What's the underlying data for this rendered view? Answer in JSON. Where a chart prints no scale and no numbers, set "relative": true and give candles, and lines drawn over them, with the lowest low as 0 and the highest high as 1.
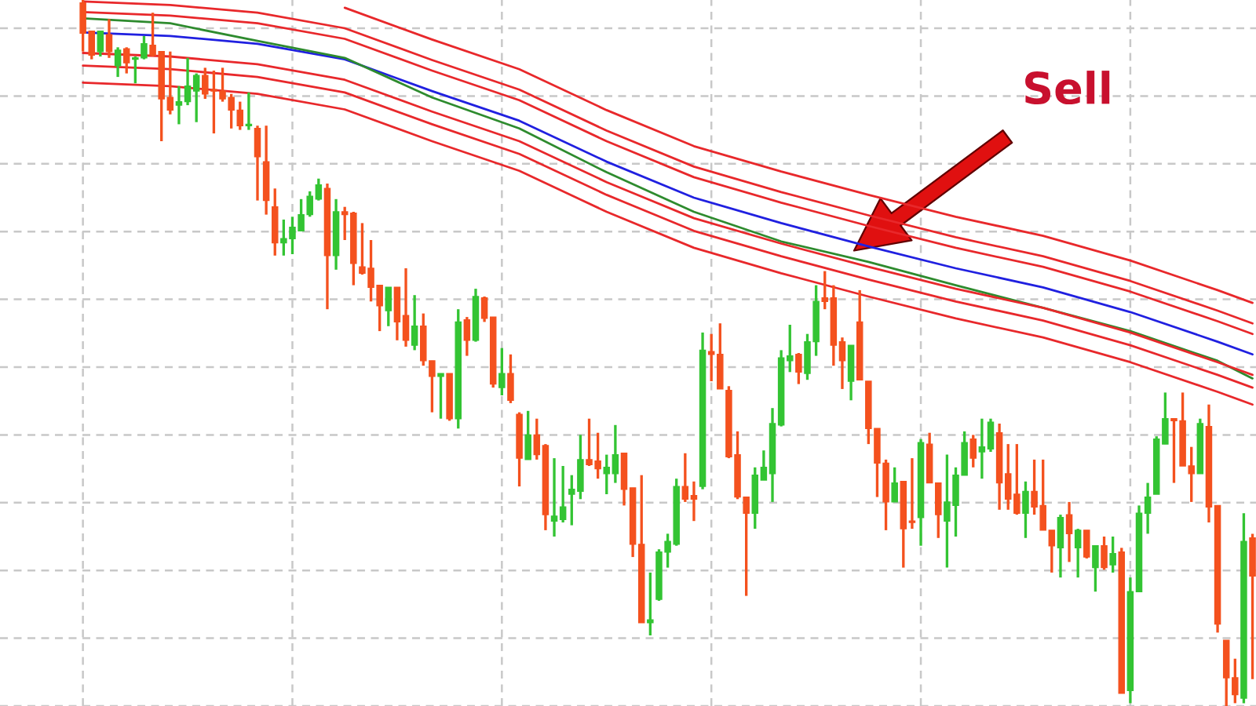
{
  "chart_data": {
    "type": "candlestick",
    "relative": true,
    "grid": true,
    "annotations": [
      "Sell"
    ],
    "categories": [
      null,
      null,
      null,
      null,
      null,
      null,
      null,
      null,
      null,
      null,
      null,
      null,
      null,
      null,
      null,
      null,
      null,
      null,
      null,
      null,
      null,
      null,
      null,
      null,
      null,
      null,
      null,
      null,
      null,
      null,
      null,
      null,
      null,
      null,
      null,
      null,
      null,
      null,
      null,
      null,
      null,
      null,
      null,
      null,
      null,
      null,
      null,
      null,
      null,
      null,
      null,
      null,
      null,
      null,
      null,
      null,
      null,
      null,
      null,
      null,
      null,
      null,
      null,
      null,
      null,
      null,
      null,
      null,
      null,
      null,
      null,
      null,
      null,
      null,
      null,
      null,
      null,
      null,
      null,
      null,
      null,
      null,
      null,
      null,
      null,
      null,
      null,
      null,
      null,
      null,
      null,
      null,
      null,
      null,
      null,
      null,
      null,
      null,
      null,
      null,
      null,
      null,
      null,
      null,
      null,
      null,
      null,
      null,
      null,
      null,
      null,
      null,
      null,
      null,
      null,
      null,
      null,
      null,
      null,
      null,
      null,
      null,
      null,
      null,
      null,
      null,
      null,
      null,
      null,
      null,
      null,
      null,
      null,
      null,
      null
    ],
    "ohlc": [
      [
        0.996,
        1,
        0.927,
        0.953
      ],
      [
        0.956,
        0.956,
        0.916,
        0.922
      ],
      [
        0.927,
        0.956,
        0.92,
        0.956
      ],
      [
        0.951,
        0.973,
        0.918,
        0.927
      ],
      [
        0.907,
        0.933,
        0.891,
        0.929
      ],
      [
        0.931,
        0.933,
        0.896,
        0.911
      ],
      [
        0.916,
        0.92,
        0.882,
        0.918
      ],
      [
        0.918,
        0.949,
        0.916,
        0.938
      ],
      [
        0.936,
        0.982,
        0.92,
        0.922
      ],
      [
        0.927,
        0.927,
        0.8,
        0.86
      ],
      [
        0.862,
        0.927,
        0.838,
        0.844
      ],
      [
        0.851,
        0.878,
        0.824,
        0.856
      ],
      [
        0.856,
        0.918,
        0.851,
        0.878
      ],
      [
        0.871,
        0.896,
        0.827,
        0.893
      ],
      [
        0.893,
        0.904,
        0.86,
        0.867
      ],
      [
        0.873,
        0.9,
        0.811,
        0.871
      ],
      [
        0.871,
        0.904,
        0.856,
        0.86
      ],
      [
        0.862,
        0.867,
        0.818,
        0.844
      ],
      [
        0.844,
        0.856,
        0.816,
        0.822
      ],
      [
        0.822,
        0.869,
        0.816,
        0.824
      ],
      [
        0.818,
        0.822,
        0.716,
        0.778
      ],
      [
        0.771,
        0.822,
        0.696,
        0.716
      ],
      [
        0.707,
        0.733,
        0.638,
        0.656
      ],
      [
        0.656,
        0.689,
        0.638,
        0.662
      ],
      [
        0.662,
        0.693,
        0.64,
        0.678
      ],
      [
        0.673,
        0.718,
        0.673,
        0.696
      ],
      [
        0.696,
        0.729,
        0.693,
        0.722
      ],
      [
        0.718,
        0.747,
        0.716,
        0.738
      ],
      [
        0.733,
        0.74,
        0.562,
        0.638
      ],
      [
        0.638,
        0.718,
        0.618,
        0.7
      ],
      [
        0.7,
        0.707,
        0.66,
        0.696
      ],
      [
        0.698,
        0.7,
        0.596,
        0.627
      ],
      [
        0.622,
        0.684,
        0.611,
        0.613
      ],
      [
        0.62,
        0.66,
        0.573,
        0.593
      ],
      [
        0.596,
        0.596,
        0.531,
        0.567
      ],
      [
        0.56,
        0.593,
        0.538,
        0.593
      ],
      [
        0.593,
        0.593,
        0.518,
        0.544
      ],
      [
        0.553,
        0.62,
        0.509,
        0.518
      ],
      [
        0.511,
        0.582,
        0.504,
        0.538
      ],
      [
        0.538,
        0.556,
        0.482,
        0.489
      ],
      [
        0.489,
        0.489,
        0.416,
        0.467
      ],
      [
        0.467,
        0.471,
        0.407,
        0.471
      ],
      [
        0.471,
        0.471,
        0.404,
        0.407
      ],
      [
        0.407,
        0.562,
        0.393,
        0.544
      ],
      [
        0.547,
        0.551,
        0.496,
        0.518
      ],
      [
        0.518,
        0.591,
        0.516,
        0.58
      ],
      [
        0.578,
        0.58,
        0.544,
        0.549
      ],
      [
        0.551,
        0.551,
        0.451,
        0.456
      ],
      [
        0.451,
        0.507,
        0.44,
        0.471
      ],
      [
        0.471,
        0.498,
        0.429,
        0.433
      ],
      [
        0.413,
        0.416,
        0.311,
        0.351
      ],
      [
        0.349,
        0.418,
        0.349,
        0.384
      ],
      [
        0.384,
        0.407,
        0.349,
        0.356
      ],
      [
        0.369,
        0.371,
        0.249,
        0.271
      ],
      [
        0.262,
        0.351,
        0.24,
        0.269
      ],
      [
        0.264,
        0.34,
        0.26,
        0.282
      ],
      [
        0.3,
        0.327,
        0.256,
        0.307
      ],
      [
        0.304,
        0.384,
        0.293,
        0.349
      ],
      [
        0.349,
        0.407,
        0.34,
        0.342
      ],
      [
        0.347,
        0.387,
        0.322,
        0.336
      ],
      [
        0.329,
        0.356,
        0.3,
        0.338
      ],
      [
        0.329,
        0.398,
        0.316,
        0.356
      ],
      [
        0.358,
        0.358,
        0.284,
        0.307
      ],
      [
        0.309,
        0.309,
        0.211,
        0.229
      ],
      [
        0.229,
        0.327,
        0.118,
        0.118
      ],
      [
        0.118,
        0.189,
        0.1,
        0.122
      ],
      [
        0.151,
        0.222,
        0.149,
        0.218
      ],
      [
        0.218,
        0.244,
        0.196,
        0.233
      ],
      [
        0.229,
        0.322,
        0.227,
        0.311
      ],
      [
        0.311,
        0.358,
        0.289,
        0.293
      ],
      [
        0.298,
        0.318,
        0.262,
        0.293
      ],
      [
        0.311,
        0.529,
        0.307,
        0.504
      ],
      [
        0.502,
        0.527,
        0.46,
        0.498
      ],
      [
        0.498,
        0.542,
        0.449,
        0.449
      ],
      [
        0.447,
        0.453,
        0.351,
        0.353
      ],
      [
        0.356,
        0.389,
        0.293,
        0.296
      ],
      [
        0.296,
        0.296,
        0.156,
        0.273
      ],
      [
        0.273,
        0.338,
        0.251,
        0.327
      ],
      [
        0.32,
        0.362,
        0.32,
        0.338
      ],
      [
        0.329,
        0.422,
        0.289,
        0.4
      ],
      [
        0.398,
        0.504,
        0.396,
        0.493
      ],
      [
        0.489,
        0.54,
        0.473,
        0.496
      ],
      [
        0.498,
        0.5,
        0.456,
        0.473
      ],
      [
        0.471,
        0.527,
        0.462,
        0.516
      ],
      [
        0.516,
        0.596,
        0.496,
        0.573
      ],
      [
        0.578,
        0.616,
        0.562,
        0.573
      ],
      [
        0.578,
        0.596,
        0.482,
        0.511
      ],
      [
        0.516,
        0.522,
        0.449,
        0.489
      ],
      [
        0.46,
        0.511,
        0.433,
        0.511
      ],
      [
        0.544,
        0.589,
        0.462,
        0.462
      ],
      [
        0.46,
        0.46,
        0.371,
        0.393
      ],
      [
        0.393,
        0.393,
        0.296,
        0.344
      ],
      [
        0.344,
        0.349,
        0.249,
        0.289
      ],
      [
        0.289,
        0.338,
        0.289,
        0.316
      ],
      [
        0.318,
        0.318,
        0.196,
        0.251
      ],
      [
        0.262,
        0.351,
        0.251,
        0.26
      ],
      [
        0.267,
        0.378,
        0.227,
        0.373
      ],
      [
        0.371,
        0.387,
        0.316,
        0.316
      ],
      [
        0.316,
        0.316,
        0.238,
        0.271
      ],
      [
        0.262,
        0.356,
        0.196,
        0.289
      ],
      [
        0.284,
        0.338,
        0.24,
        0.327
      ],
      [
        0.327,
        0.389,
        0.327,
        0.373
      ],
      [
        0.378,
        0.384,
        0.338,
        0.351
      ],
      [
        0.36,
        0.407,
        0.322,
        0.367
      ],
      [
        0.364,
        0.407,
        0.36,
        0.402
      ],
      [
        0.387,
        0.4,
        0.278,
        0.316
      ],
      [
        0.329,
        0.371,
        0.278,
        0.293
      ],
      [
        0.3,
        0.371,
        0.271,
        0.273
      ],
      [
        0.273,
        0.318,
        0.238,
        0.304
      ],
      [
        0.304,
        0.349,
        0.271,
        0.282
      ],
      [
        0.284,
        0.349,
        0.249,
        0.249
      ],
      [
        0.249,
        0.249,
        0.189,
        0.227
      ],
      [
        0.224,
        0.271,
        0.182,
        0.267
      ],
      [
        0.271,
        0.289,
        0.204,
        0.244
      ],
      [
        0.224,
        0.251,
        0.182,
        0.249
      ],
      [
        0.249,
        0.249,
        0.209,
        0.211
      ],
      [
        0.196,
        0.227,
        0.162,
        0.227
      ],
      [
        0.227,
        0.24,
        0.193,
        0.196
      ],
      [
        0.2,
        0.24,
        0.189,
        0.216
      ],
      [
        0.218,
        0.224,
        0.018,
        0.018
      ],
      [
        0.022,
        0.182,
        0.004,
        0.162
      ],
      [
        0.162,
        0.284,
        0.162,
        0.273
      ],
      [
        0.273,
        0.316,
        0.244,
        0.296
      ],
      [
        0.3,
        0.382,
        0.3,
        0.378
      ],
      [
        0.371,
        0.444,
        0.371,
        0.407
      ],
      [
        0.407,
        0.407,
        0.316,
        0.404
      ],
      [
        0.404,
        0.444,
        0.34,
        0.34
      ],
      [
        0.34,
        0.367,
        0.289,
        0.329
      ],
      [
        0.329,
        0.407,
        0.329,
        0.4
      ],
      [
        0.396,
        0.427,
        0.26,
        0.282
      ],
      [
        0.284,
        0.284,
        0.104,
        0.116
      ],
      [
        0.093,
        0.093,
        0,
        0.04
      ],
      [
        0.04,
        0.067,
        0.004,
        0.016
      ],
      [
        0.011,
        0.273,
        0.004,
        0.233
      ],
      [
        0.238,
        0.244,
        0.038,
        0.184
      ]
    ],
    "colors": [
      "#f4511e",
      "#f4511e",
      "#33c433",
      "#f4511e",
      "#33c433",
      "#f4511e",
      "#33c433",
      "#33c433",
      "#f4511e",
      "#f4511e",
      "#f4511e",
      "#33c433",
      "#33c433",
      "#33c433",
      "#f4511e",
      "#f4511e",
      "#f4511e",
      "#f4511e",
      "#f4511e",
      "#33c433",
      "#f4511e",
      "#f4511e",
      "#f4511e",
      "#33c433",
      "#33c433",
      "#33c433",
      "#33c433",
      "#33c433",
      "#f4511e",
      "#33c433",
      "#f4511e",
      "#f4511e",
      "#f4511e",
      "#f4511e",
      "#f4511e",
      "#33c433",
      "#f4511e",
      "#f4511e",
      "#33c433",
      "#f4511e",
      "#f4511e",
      "#33c433",
      "#f4511e",
      "#33c433",
      "#f4511e",
      "#33c433",
      "#f4511e",
      "#f4511e",
      "#33c433",
      "#f4511e",
      "#f4511e",
      "#33c433",
      "#f4511e",
      "#f4511e",
      "#33c433",
      "#33c433",
      "#33c433",
      "#33c433",
      "#f4511e",
      "#f4511e",
      "#33c433",
      "#33c433",
      "#f4511e",
      "#f4511e",
      "#f4511e",
      "#33c433",
      "#33c433",
      "#33c433",
      "#33c433",
      "#f4511e",
      "#f4511e",
      "#33c433",
      "#f4511e",
      "#f4511e",
      "#f4511e",
      "#f4511e",
      "#f4511e",
      "#33c433",
      "#33c433",
      "#33c433",
      "#33c433",
      "#33c433",
      "#f4511e",
      "#33c433",
      "#33c433",
      "#f4511e",
      "#f4511e",
      "#f4511e",
      "#33c433",
      "#f4511e",
      "#f4511e",
      "#f4511e",
      "#f4511e",
      "#33c433",
      "#f4511e",
      "#f4511e",
      "#33c433",
      "#f4511e",
      "#f4511e",
      "#33c433",
      "#33c433",
      "#33c433",
      "#f4511e",
      "#33c433",
      "#33c433",
      "#f4511e",
      "#f4511e",
      "#f4511e",
      "#33c433",
      "#f4511e",
      "#f4511e",
      "#f4511e",
      "#33c433",
      "#f4511e",
      "#33c433",
      "#f4511e",
      "#33c433",
      "#f4511e",
      "#33c433",
      "#f4511e",
      "#33c433",
      "#33c433",
      "#33c433",
      "#33c433",
      "#33c433",
      "#f4511e",
      "#f4511e",
      "#f4511e",
      "#33c433",
      "#f4511e",
      "#f4511e",
      "#f4511e",
      "#f4511e",
      "#33c433",
      "#f4511e"
    ],
    "series": [
      {
        "type": "line",
        "color": "#e8282b",
        "values": [
          null,
          null,
          null,
          null,
          null,
          null,
          null,
          null,
          null,
          null,
          null,
          null,
          null,
          null,
          null,
          null,
          null,
          null,
          null,
          null,
          null,
          null,
          null,
          null,
          null,
          null,
          null,
          null,
          null,
          null,
          0.989,
          null,
          null,
          null,
          null,
          null,
          null,
          null,
          null,
          null,
          0.944,
          null,
          null,
          null,
          null,
          null,
          null,
          null,
          null,
          null,
          0.902,
          null,
          null,
          null,
          null,
          null,
          null,
          null,
          null,
          null,
          0.844,
          null,
          null,
          null,
          null,
          null,
          null,
          null,
          null,
          null,
          0.793,
          null,
          null,
          null,
          null,
          null,
          null,
          null,
          null,
          null,
          0.757,
          null,
          null,
          null,
          null,
          null,
          null,
          null,
          null,
          null,
          0.724,
          null,
          null,
          null,
          null,
          null,
          null,
          null,
          null,
          null,
          0.693,
          null,
          null,
          null,
          null,
          null,
          null,
          null,
          null,
          null,
          0.666,
          null,
          null,
          null,
          null,
          null,
          null,
          null,
          null,
          null,
          0.631,
          null,
          null,
          null,
          null,
          null,
          null,
          null,
          null,
          null,
          0.589,
          null,
          null,
          null,
          0.571
        ]
      },
      {
        "type": "line",
        "color": "#e8282b",
        "values": [
          0.998,
          null,
          null,
          null,
          null,
          null,
          null,
          null,
          null,
          null,
          0.993,
          null,
          null,
          null,
          null,
          null,
          null,
          null,
          null,
          null,
          0.982,
          null,
          null,
          null,
          null,
          null,
          null,
          null,
          null,
          null,
          0.96,
          null,
          null,
          null,
          null,
          null,
          null,
          null,
          null,
          null,
          0.915,
          null,
          null,
          null,
          null,
          null,
          null,
          null,
          null,
          null,
          0.873,
          null,
          null,
          null,
          null,
          null,
          null,
          null,
          null,
          null,
          0.815,
          null,
          null,
          null,
          null,
          null,
          null,
          null,
          null,
          null,
          0.764,
          null,
          null,
          null,
          null,
          null,
          null,
          null,
          null,
          null,
          0.728,
          null,
          null,
          null,
          null,
          null,
          null,
          null,
          null,
          null,
          0.695,
          null,
          null,
          null,
          null,
          null,
          null,
          null,
          null,
          null,
          0.664,
          null,
          null,
          null,
          null,
          null,
          null,
          null,
          null,
          null,
          0.637,
          null,
          null,
          null,
          null,
          null,
          null,
          null,
          null,
          null,
          0.602,
          null,
          null,
          null,
          null,
          null,
          null,
          null,
          null,
          null,
          0.56,
          null,
          null,
          null,
          0.542
        ]
      },
      {
        "type": "line",
        "color": "#e8282b",
        "values": [
          0.983,
          null,
          null,
          null,
          null,
          null,
          null,
          null,
          null,
          null,
          0.978,
          null,
          null,
          null,
          null,
          null,
          null,
          null,
          null,
          null,
          0.967,
          null,
          null,
          null,
          null,
          null,
          null,
          null,
          null,
          null,
          0.945,
          null,
          null,
          null,
          null,
          null,
          null,
          null,
          null,
          null,
          0.9,
          null,
          null,
          null,
          null,
          null,
          null,
          null,
          null,
          null,
          0.858,
          null,
          null,
          null,
          null,
          null,
          null,
          null,
          null,
          null,
          0.8,
          null,
          null,
          null,
          null,
          null,
          null,
          null,
          null,
          null,
          0.749,
          null,
          null,
          null,
          null,
          null,
          null,
          null,
          null,
          null,
          0.713,
          null,
          null,
          null,
          null,
          null,
          null,
          null,
          null,
          null,
          0.68,
          null,
          null,
          null,
          null,
          null,
          null,
          null,
          null,
          null,
          0.649,
          null,
          null,
          null,
          null,
          null,
          null,
          null,
          null,
          null,
          0.622,
          null,
          null,
          null,
          null,
          null,
          null,
          null,
          null,
          null,
          0.587,
          null,
          null,
          null,
          null,
          null,
          null,
          null,
          null,
          null,
          0.545,
          null,
          null,
          null,
          0.527
        ]
      },
      {
        "type": "line",
        "color": "#2020e0",
        "values": [
          0.954,
          null,
          null,
          null,
          null,
          null,
          null,
          null,
          null,
          null,
          0.949,
          null,
          null,
          null,
          null,
          null,
          null,
          null,
          null,
          null,
          0.938,
          null,
          null,
          null,
          null,
          null,
          null,
          null,
          null,
          null,
          0.916,
          null,
          null,
          null,
          null,
          null,
          null,
          null,
          null,
          null,
          0.871,
          null,
          null,
          null,
          null,
          null,
          null,
          null,
          null,
          null,
          0.829,
          null,
          null,
          null,
          null,
          null,
          null,
          null,
          null,
          null,
          0.771,
          null,
          null,
          null,
          null,
          null,
          null,
          null,
          null,
          null,
          0.72,
          null,
          null,
          null,
          null,
          null,
          null,
          null,
          null,
          null,
          0.684,
          null,
          null,
          null,
          null,
          null,
          null,
          null,
          null,
          null,
          0.651,
          null,
          null,
          null,
          null,
          null,
          null,
          null,
          null,
          null,
          0.62,
          null,
          null,
          null,
          null,
          null,
          null,
          null,
          null,
          null,
          0.593,
          null,
          null,
          null,
          null,
          null,
          null,
          null,
          null,
          null,
          0.558,
          null,
          null,
          null,
          null,
          null,
          null,
          null,
          null,
          null,
          0.516,
          null,
          null,
          null,
          0.498
        ]
      },
      {
        "type": "line",
        "color": "#2e8b2e",
        "values": [
          0.974,
          null,
          null,
          null,
          null,
          null,
          null,
          null,
          null,
          null,
          0.967,
          null,
          null,
          null,
          null,
          null,
          null,
          null,
          null,
          null,
          0.942,
          null,
          null,
          null,
          null,
          null,
          null,
          null,
          null,
          null,
          0.918,
          null,
          null,
          null,
          null,
          null,
          null,
          null,
          null,
          null,
          0.862,
          null,
          null,
          null,
          null,
          null,
          null,
          null,
          null,
          null,
          0.818,
          null,
          null,
          null,
          null,
          null,
          null,
          null,
          null,
          null,
          0.756,
          null,
          null,
          null,
          null,
          null,
          null,
          null,
          null,
          null,
          0.7,
          null,
          null,
          null,
          null,
          null,
          null,
          null,
          null,
          null,
          0.658,
          null,
          null,
          null,
          null,
          null,
          null,
          null,
          null,
          null,
          0.629,
          null,
          null,
          null,
          null,
          null,
          null,
          null,
          null,
          null,
          0.596,
          null,
          null,
          null,
          null,
          null,
          null,
          null,
          null,
          null,
          0.564,
          null,
          null,
          null,
          null,
          null,
          null,
          null,
          null,
          null,
          0.531,
          null,
          null,
          null,
          null,
          null,
          null,
          null,
          null,
          null,
          0.489,
          null,
          null,
          null,
          0.464
        ]
      },
      {
        "type": "line",
        "color": "#e8282b",
        "values": [
          0.925,
          null,
          null,
          null,
          null,
          null,
          null,
          null,
          null,
          null,
          0.92,
          null,
          null,
          null,
          null,
          null,
          null,
          null,
          null,
          null,
          0.909,
          null,
          null,
          null,
          null,
          null,
          null,
          null,
          null,
          null,
          0.887,
          null,
          null,
          null,
          null,
          null,
          null,
          null,
          null,
          null,
          0.842,
          null,
          null,
          null,
          null,
          null,
          null,
          null,
          null,
          null,
          0.8,
          null,
          null,
          null,
          null,
          null,
          null,
          null,
          null,
          null,
          0.742,
          null,
          null,
          null,
          null,
          null,
          null,
          null,
          null,
          null,
          0.691,
          null,
          null,
          null,
          null,
          null,
          null,
          null,
          null,
          null,
          0.655,
          null,
          null,
          null,
          null,
          null,
          null,
          null,
          null,
          null,
          0.622,
          null,
          null,
          null,
          null,
          null,
          null,
          null,
          null,
          null,
          0.591,
          null,
          null,
          null,
          null,
          null,
          null,
          null,
          null,
          null,
          0.564,
          null,
          null,
          null,
          null,
          null,
          null,
          null,
          null,
          null,
          0.529,
          null,
          null,
          null,
          null,
          null,
          null,
          null,
          null,
          null,
          0.487,
          null,
          null,
          null,
          0.469
        ]
      },
      {
        "type": "line",
        "color": "#e8282b",
        "values": [
          0.907,
          null,
          null,
          null,
          null,
          null,
          null,
          null,
          null,
          null,
          0.902,
          null,
          null,
          null,
          null,
          null,
          null,
          null,
          null,
          null,
          0.891,
          null,
          null,
          null,
          null,
          null,
          null,
          null,
          null,
          null,
          0.869,
          null,
          null,
          null,
          null,
          null,
          null,
          null,
          null,
          null,
          0.824,
          null,
          null,
          null,
          null,
          null,
          null,
          null,
          null,
          null,
          0.782,
          null,
          null,
          null,
          null,
          null,
          null,
          null,
          null,
          null,
          0.724,
          null,
          null,
          null,
          null,
          null,
          null,
          null,
          null,
          null,
          0.673,
          null,
          null,
          null,
          null,
          null,
          null,
          null,
          null,
          null,
          0.637,
          null,
          null,
          null,
          null,
          null,
          null,
          null,
          null,
          null,
          0.604,
          null,
          null,
          null,
          null,
          null,
          null,
          null,
          null,
          null,
          0.573,
          null,
          null,
          null,
          null,
          null,
          null,
          null,
          null,
          null,
          0.546,
          null,
          null,
          null,
          null,
          null,
          null,
          null,
          null,
          null,
          0.511,
          null,
          null,
          null,
          null,
          null,
          null,
          null,
          null,
          null,
          0.469,
          null,
          null,
          null,
          0.451
        ]
      },
      {
        "type": "line",
        "color": "#e8282b",
        "values": [
          0.883,
          null,
          null,
          null,
          null,
          null,
          null,
          null,
          null,
          null,
          0.878,
          null,
          null,
          null,
          null,
          null,
          null,
          null,
          null,
          null,
          0.867,
          null,
          null,
          null,
          null,
          null,
          null,
          null,
          null,
          null,
          0.845,
          null,
          null,
          null,
          null,
          null,
          null,
          null,
          null,
          null,
          0.8,
          null,
          null,
          null,
          null,
          null,
          null,
          null,
          null,
          null,
          0.758,
          null,
          null,
          null,
          null,
          null,
          null,
          null,
          null,
          null,
          0.7,
          null,
          null,
          null,
          null,
          null,
          null,
          null,
          null,
          null,
          0.649,
          null,
          null,
          null,
          null,
          null,
          null,
          null,
          null,
          null,
          0.613,
          null,
          null,
          null,
          null,
          null,
          null,
          null,
          null,
          null,
          0.58,
          null,
          null,
          null,
          null,
          null,
          null,
          null,
          null,
          null,
          0.549,
          null,
          null,
          null,
          null,
          null,
          null,
          null,
          null,
          null,
          0.522,
          null,
          null,
          null,
          null,
          null,
          null,
          null,
          null,
          null,
          0.487,
          null,
          null,
          null,
          null,
          null,
          null,
          null,
          null,
          null,
          0.445,
          null,
          null,
          null,
          0.427
        ]
      }
    ]
  }
}
